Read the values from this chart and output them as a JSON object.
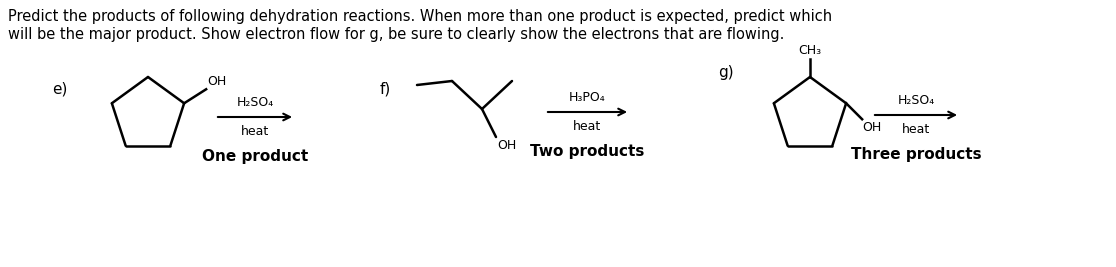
{
  "title_line1": "Predict the products of following dehydration reactions. When more than one product is expected, predict which",
  "title_line2": "will be the major product. Show electron flow for g, be sure to clearly show the electrons that are flowing.",
  "bg_color": "#ffffff",
  "text_color": "#000000",
  "label_e": "e)",
  "label_f": "f)",
  "label_g": "g)",
  "reagent_e_top": "H₂SO₄",
  "reagent_e_bot": "heat",
  "caption_e": "One product",
  "reagent_f_top": "H₃PO₄",
  "reagent_f_bot": "heat",
  "caption_f": "Two products",
  "reagent_g_top": "H₂SO₄",
  "reagent_g_bot": "heat",
  "caption_g": "Three products",
  "title_fontsize": 10.5,
  "label_fontsize": 11,
  "reagent_fontsize": 9,
  "caption_fontsize": 11
}
